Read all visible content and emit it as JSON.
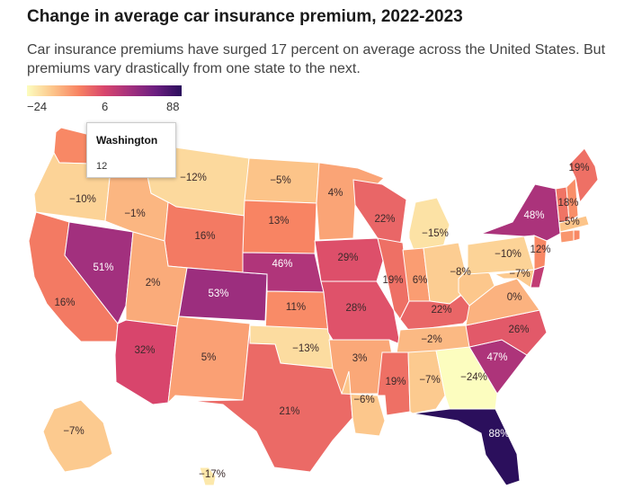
{
  "header": {
    "title": "Change in average car insurance premium, 2022-2023",
    "subtitle": "Car insurance premiums have surged 17 percent on average across the United States. But premiums vary drastically from one state to the next."
  },
  "legend": {
    "min_label": "−24",
    "mid_label": "6",
    "max_label": "88",
    "min_value": -24,
    "max_value": 88,
    "colors": [
      "#fcfdbf",
      "#fcc58a",
      "#f88362",
      "#d8456c",
      "#a3307e",
      "#6b1e80",
      "#2b0f5c"
    ]
  },
  "tooltip": {
    "state": "Washington",
    "value": "12"
  },
  "map_data": {
    "type": "choropleth",
    "unit": "percent change",
    "states": [
      {
        "code": "WA",
        "label": "",
        "value": 12
      },
      {
        "code": "OR",
        "label": "−10%",
        "value": -10
      },
      {
        "code": "CA",
        "label": "16%",
        "value": 16
      },
      {
        "code": "NV",
        "label": "51%",
        "value": 51
      },
      {
        "code": "ID",
        "label": "−1%",
        "value": -1
      },
      {
        "code": "MT",
        "label": "−12%",
        "value": -12
      },
      {
        "code": "WY",
        "label": "16%",
        "value": 16
      },
      {
        "code": "UT",
        "label": "2%",
        "value": 2
      },
      {
        "code": "AZ",
        "label": "32%",
        "value": 32
      },
      {
        "code": "CO",
        "label": "53%",
        "value": 53
      },
      {
        "code": "NM",
        "label": "5%",
        "value": 5
      },
      {
        "code": "ND",
        "label": "−5%",
        "value": -5
      },
      {
        "code": "SD",
        "label": "13%",
        "value": 13
      },
      {
        "code": "NE",
        "label": "46%",
        "value": 46
      },
      {
        "code": "KS",
        "label": "11%",
        "value": 11
      },
      {
        "code": "OK",
        "label": "−13%",
        "value": -13
      },
      {
        "code": "TX",
        "label": "21%",
        "value": 21
      },
      {
        "code": "MN",
        "label": "4%",
        "value": 4
      },
      {
        "code": "IA",
        "label": "29%",
        "value": 29
      },
      {
        "code": "MO",
        "label": "28%",
        "value": 28
      },
      {
        "code": "AR",
        "label": "3%",
        "value": 3
      },
      {
        "code": "LA",
        "label": "−6%",
        "value": -6
      },
      {
        "code": "WI",
        "label": "22%",
        "value": 22
      },
      {
        "code": "IL",
        "label": "19%",
        "value": 19
      },
      {
        "code": "MI",
        "label": "−15%",
        "value": -15
      },
      {
        "code": "IN",
        "label": "6%",
        "value": 6
      },
      {
        "code": "OH",
        "label": "−8%",
        "value": -8
      },
      {
        "code": "KY",
        "label": "22%",
        "value": 22
      },
      {
        "code": "TN",
        "label": "−2%",
        "value": -2
      },
      {
        "code": "MS",
        "label": "19%",
        "value": 19
      },
      {
        "code": "AL",
        "label": "−7%",
        "value": -7
      },
      {
        "code": "GA",
        "label": "−24%",
        "value": -24
      },
      {
        "code": "FL",
        "label": "88%",
        "value": 88
      },
      {
        "code": "SC",
        "label": "47%",
        "value": 47
      },
      {
        "code": "NC",
        "label": "26%",
        "value": 26
      },
      {
        "code": "VA",
        "label": "0%",
        "value": 0
      },
      {
        "code": "WV",
        "label": "",
        "value": -6
      },
      {
        "code": "PA",
        "label": "−10%",
        "value": -10
      },
      {
        "code": "NY",
        "label": "48%",
        "value": 48
      },
      {
        "code": "NJ",
        "label": "12%",
        "value": 12
      },
      {
        "code": "MD",
        "label": "−7%",
        "value": -7
      },
      {
        "code": "DE",
        "label": "",
        "value": 40
      },
      {
        "code": "VT",
        "label": "18%",
        "value": 18
      },
      {
        "code": "NH",
        "label": "",
        "value": 10
      },
      {
        "code": "MA",
        "label": "−5%",
        "value": -5
      },
      {
        "code": "CT",
        "label": "",
        "value": 8
      },
      {
        "code": "RI",
        "label": "",
        "value": 12
      },
      {
        "code": "ME",
        "label": "19%",
        "value": 19
      },
      {
        "code": "AK",
        "label": "−7%",
        "value": -7
      },
      {
        "code": "HI",
        "label": "−17%",
        "value": -17
      }
    ]
  }
}
